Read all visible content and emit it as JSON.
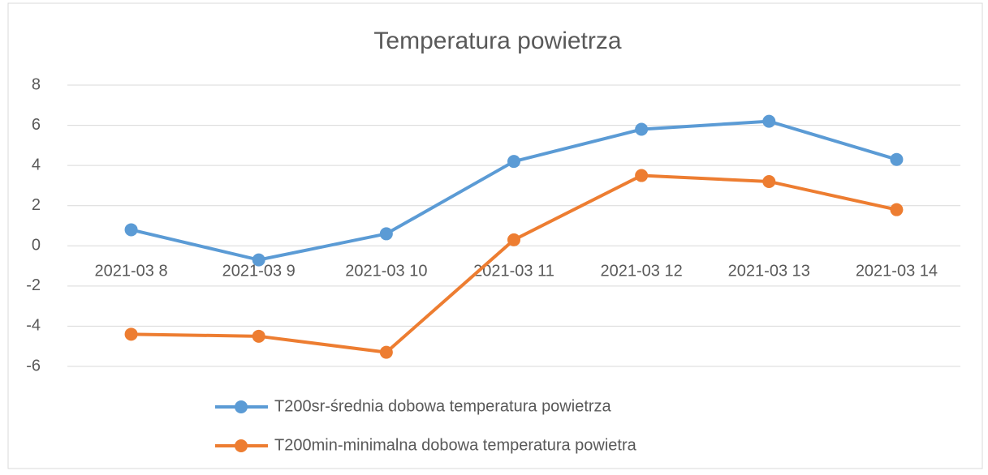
{
  "chart_data": {
    "type": "line",
    "title": "Temperatura  powietrza",
    "categories": [
      "2021-03 8",
      "2021-03 9",
      "2021-03 10",
      "2021-03 11",
      "2021-03 12",
      "2021-03 13",
      "2021-03 14"
    ],
    "series": [
      {
        "name": "T200sr-średnia dobowa temperatura powietrza",
        "color": "#5b9bd5",
        "values": [
          0.8,
          -0.7,
          0.6,
          4.2,
          5.8,
          6.2,
          4.3
        ]
      },
      {
        "name": "T200min-minimalna dobowa temperatura powietra",
        "color": "#ed7d31",
        "values": [
          -4.4,
          -4.5,
          -5.3,
          0.3,
          3.5,
          3.2,
          1.8
        ]
      }
    ],
    "ylim": [
      -6,
      8
    ],
    "yticks": [
      -6,
      -4,
      -2,
      0,
      2,
      4,
      6,
      8
    ],
    "grid": true,
    "legend": "bottom"
  }
}
